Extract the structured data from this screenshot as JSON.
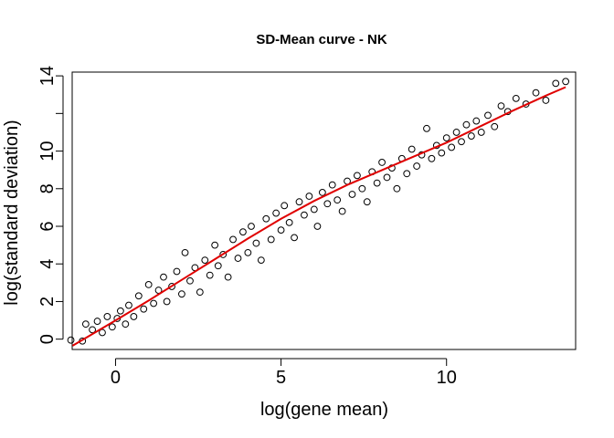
{
  "chart_data": {
    "type": "scatter",
    "title": "SD-Mean curve - NK",
    "xlabel": "log(gene mean)",
    "ylabel": "log(standard deviation)",
    "xlim": [
      -1.31,
      13.9
    ],
    "ylim": [
      -0.55,
      14.2
    ],
    "x_ticks": [
      0,
      5,
      10
    ],
    "y_ticks": [
      0,
      2,
      4,
      6,
      8,
      10,
      12,
      14
    ],
    "y_tick_labels": [
      "0",
      "2",
      "4",
      "6",
      "8",
      "10",
      "",
      "14"
    ],
    "grid": false,
    "point_style": "open circle",
    "point_color": "#000000",
    "fit_line_color": "#e00000",
    "points": [
      [
        -1.35,
        -0.05
      ],
      [
        -1.0,
        -0.1
      ],
      [
        -0.9,
        0.8
      ],
      [
        -0.7,
        0.5
      ],
      [
        -0.55,
        0.95
      ],
      [
        -0.4,
        0.35
      ],
      [
        -0.25,
        1.2
      ],
      [
        -0.1,
        0.65
      ],
      [
        0.05,
        1.1
      ],
      [
        0.15,
        1.5
      ],
      [
        0.3,
        0.8
      ],
      [
        0.4,
        1.8
      ],
      [
        0.55,
        1.2
      ],
      [
        0.7,
        2.3
      ],
      [
        0.85,
        1.6
      ],
      [
        1.0,
        2.9
      ],
      [
        1.15,
        1.9
      ],
      [
        1.3,
        2.6
      ],
      [
        1.45,
        3.3
      ],
      [
        1.55,
        2.0
      ],
      [
        1.7,
        2.8
      ],
      [
        1.85,
        3.6
      ],
      [
        2.0,
        2.4
      ],
      [
        2.1,
        4.6
      ],
      [
        2.25,
        3.1
      ],
      [
        2.4,
        3.8
      ],
      [
        2.55,
        2.5
      ],
      [
        2.7,
        4.2
      ],
      [
        2.85,
        3.4
      ],
      [
        3.0,
        5.0
      ],
      [
        3.1,
        3.9
      ],
      [
        3.25,
        4.5
      ],
      [
        3.4,
        3.3
      ],
      [
        3.55,
        5.3
      ],
      [
        3.7,
        4.3
      ],
      [
        3.85,
        5.7
      ],
      [
        4.0,
        4.6
      ],
      [
        4.1,
        6.0
      ],
      [
        4.25,
        5.1
      ],
      [
        4.4,
        4.2
      ],
      [
        4.55,
        6.4
      ],
      [
        4.7,
        5.3
      ],
      [
        4.85,
        6.7
      ],
      [
        5.0,
        5.8
      ],
      [
        5.1,
        7.1
      ],
      [
        5.25,
        6.2
      ],
      [
        5.4,
        5.4
      ],
      [
        5.55,
        7.3
      ],
      [
        5.7,
        6.6
      ],
      [
        5.85,
        7.6
      ],
      [
        6.0,
        6.9
      ],
      [
        6.1,
        6.0
      ],
      [
        6.25,
        7.8
      ],
      [
        6.4,
        7.2
      ],
      [
        6.55,
        8.2
      ],
      [
        6.7,
        7.4
      ],
      [
        6.85,
        6.8
      ],
      [
        7.0,
        8.4
      ],
      [
        7.15,
        7.7
      ],
      [
        7.3,
        8.7
      ],
      [
        7.45,
        8.0
      ],
      [
        7.6,
        7.3
      ],
      [
        7.75,
        8.9
      ],
      [
        7.9,
        8.3
      ],
      [
        8.05,
        9.4
      ],
      [
        8.2,
        8.6
      ],
      [
        8.35,
        9.1
      ],
      [
        8.5,
        8.0
      ],
      [
        8.65,
        9.6
      ],
      [
        8.8,
        8.8
      ],
      [
        8.95,
        10.1
      ],
      [
        9.1,
        9.2
      ],
      [
        9.25,
        9.8
      ],
      [
        9.4,
        11.2
      ],
      [
        9.55,
        9.6
      ],
      [
        9.7,
        10.3
      ],
      [
        9.85,
        9.9
      ],
      [
        10.0,
        10.7
      ],
      [
        10.15,
        10.2
      ],
      [
        10.3,
        11.0
      ],
      [
        10.45,
        10.5
      ],
      [
        10.6,
        11.4
      ],
      [
        10.75,
        10.8
      ],
      [
        10.9,
        11.6
      ],
      [
        11.05,
        11.0
      ],
      [
        11.25,
        11.9
      ],
      [
        11.45,
        11.3
      ],
      [
        11.65,
        12.4
      ],
      [
        11.85,
        12.1
      ],
      [
        12.1,
        12.8
      ],
      [
        12.4,
        12.5
      ],
      [
        12.7,
        13.1
      ],
      [
        13.0,
        12.7
      ],
      [
        13.3,
        13.6
      ],
      [
        13.6,
        13.7
      ]
    ],
    "fit_line": [
      [
        -1.3,
        -0.35
      ],
      [
        0.0,
        1.0
      ],
      [
        1.0,
        2.05
      ],
      [
        2.0,
        3.15
      ],
      [
        3.0,
        4.25
      ],
      [
        4.0,
        5.35
      ],
      [
        5.0,
        6.4
      ],
      [
        6.0,
        7.35
      ],
      [
        7.0,
        8.2
      ],
      [
        8.0,
        8.95
      ],
      [
        9.0,
        9.7
      ],
      [
        10.0,
        10.45
      ],
      [
        11.0,
        11.3
      ],
      [
        12.0,
        12.15
      ],
      [
        13.0,
        12.95
      ],
      [
        13.6,
        13.4
      ]
    ]
  }
}
